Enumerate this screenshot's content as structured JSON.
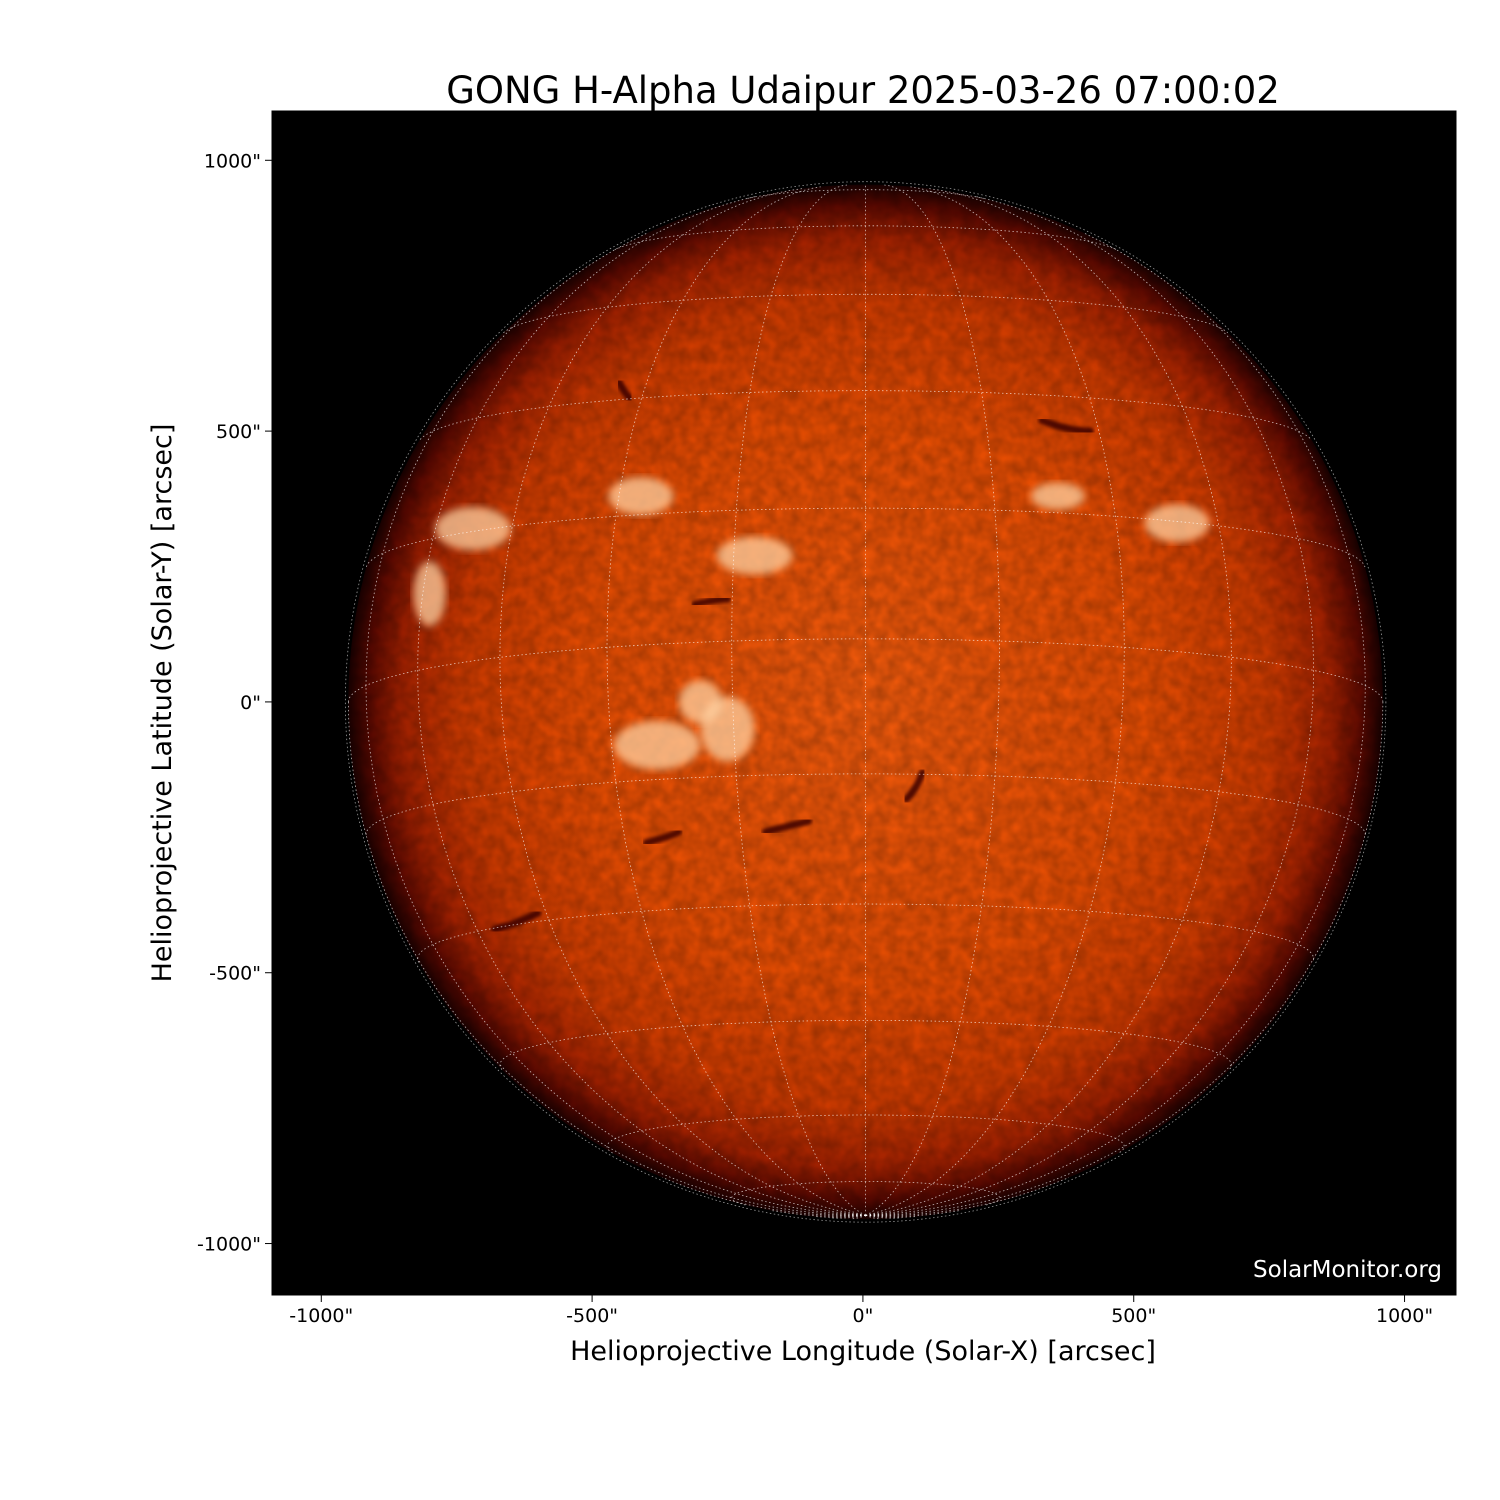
{
  "chart_data": {
    "type": "image",
    "title": "GONG H-Alpha Udaipur 2025-03-26 07:00:02",
    "xlabel": "Helioprojective Longitude (Solar-X) [arcsec]",
    "ylabel": "Helioprojective Latitude (Solar-Y) [arcsec]",
    "xlim": [
      -1091,
      1095
    ],
    "ylim": [
      -1095,
      1091
    ],
    "xticks": [
      {
        "value": -1000,
        "label": "-1000\""
      },
      {
        "value": -500,
        "label": "-500\""
      },
      {
        "value": 0,
        "label": "0\""
      },
      {
        "value": 500,
        "label": "500\""
      },
      {
        "value": 1000,
        "label": "1000\""
      }
    ],
    "yticks": [
      {
        "value": 1000,
        "label": "1000\""
      },
      {
        "value": 500,
        "label": "500\""
      },
      {
        "value": 0,
        "label": "0\""
      },
      {
        "value": -500,
        "label": "-500\""
      },
      {
        "value": -1000,
        "label": "-1000\""
      }
    ],
    "solar_radius_arcsec": 955,
    "heliographic_grid_spacing_deg": 15,
    "grid": true,
    "colormap": "red-orange H-alpha",
    "background_color": "#000000",
    "grid_color": "#ffffff",
    "watermark": "SolarMonitor.org"
  }
}
